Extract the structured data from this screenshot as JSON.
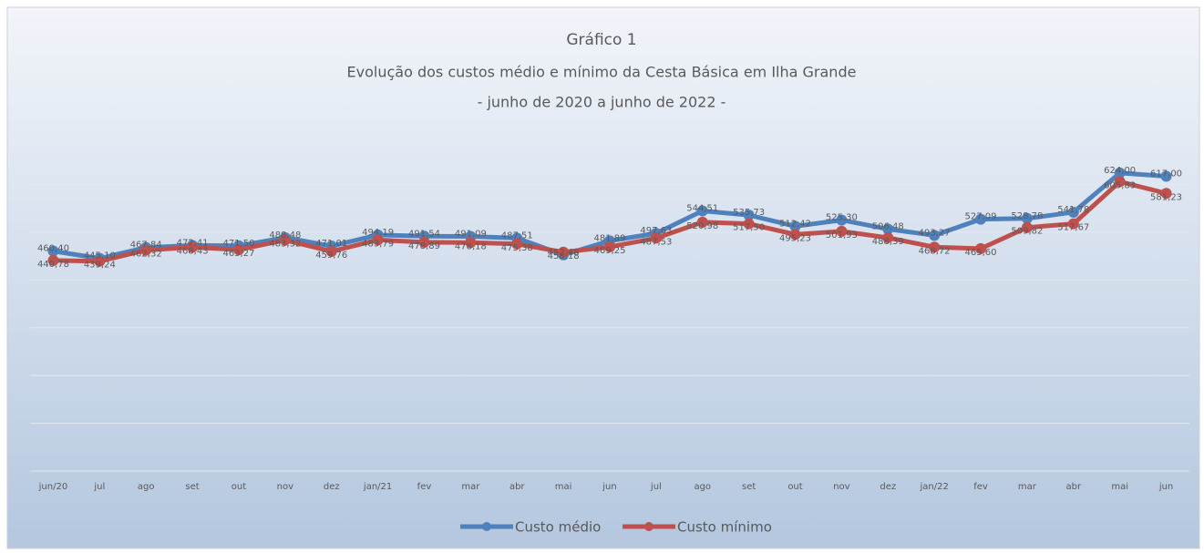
{
  "chart_data": {
    "type": "line",
    "title": "Gráfico 1",
    "subtitle": [
      "Evolução dos custos médio e mínimo da Cesta Básica em Ilha Grande",
      "- junho de 2020 a junho de 2022 -"
    ],
    "categories": [
      "jun/20",
      "jul",
      "ago",
      "set",
      "out",
      "nov",
      "dez",
      "jan/21",
      "fev",
      "mar",
      "abr",
      "mai",
      "jun",
      "jul",
      "ago",
      "set",
      "out",
      "nov",
      "dez",
      "jan/22",
      "fev",
      "mar",
      "abr",
      "mai",
      "jun"
    ],
    "series": [
      {
        "name": "Custo médio",
        "color": "#4f81bd",
        "values": [
          460.4,
          445.1,
          467.84,
          472.41,
          471.5,
          488.48,
          471.01,
          494.19,
          491.54,
          491.09,
          487.51,
          452.48,
          481.89,
          497.63,
          544.51,
          535.73,
          512.42,
          525.3,
          506.48,
          493.27,
          527.09,
          528.78,
          541.78,
          624.0,
          617.0
        ],
        "value_labels": [
          "460,40",
          "445,10",
          "467,84",
          "472,41",
          "471,50",
          "488,48",
          "471,01",
          "494,19",
          "491,54",
          "491,09",
          "487,51",
          "452,48",
          "481,89",
          "497,63",
          "544,51",
          "535,73",
          "512,42",
          "525,30",
          "506,48",
          "493,27",
          "527,09",
          "528,78",
          "541,78",
          "624,00",
          "617,00"
        ]
      },
      {
        "name": "Custo mínimo",
        "color": "#c0504d",
        "values": [
          440.78,
          439.24,
          462.32,
          468.43,
          463.27,
          483.32,
          459.76,
          483.79,
          478.89,
          478.18,
          475.38,
          458.18,
          469.25,
          487.53,
          520.98,
          517.5,
          495.23,
          501.93,
          488.39,
          468.72,
          465.6,
          509.82,
          517.67,
          605.83,
          581.23
        ],
        "value_labels": [
          "440,78",
          "439,24",
          "462,32",
          "468,43",
          "463,27",
          "483,32",
          "459,76",
          "483,79",
          "478,89",
          "478,18",
          "475,38",
          "458,18",
          "469,25",
          "487,53",
          "520,98",
          "517,50",
          "495,23",
          "501,93",
          "488,39",
          "468,72",
          "465,60",
          "509,82",
          "517,67",
          "605,83",
          "581,23"
        ]
      }
    ],
    "ylim": [
      0,
      700
    ],
    "yticks": [
      0,
      100,
      200,
      300,
      400,
      500,
      600,
      700
    ],
    "grid": true,
    "legend": "bottom"
  }
}
